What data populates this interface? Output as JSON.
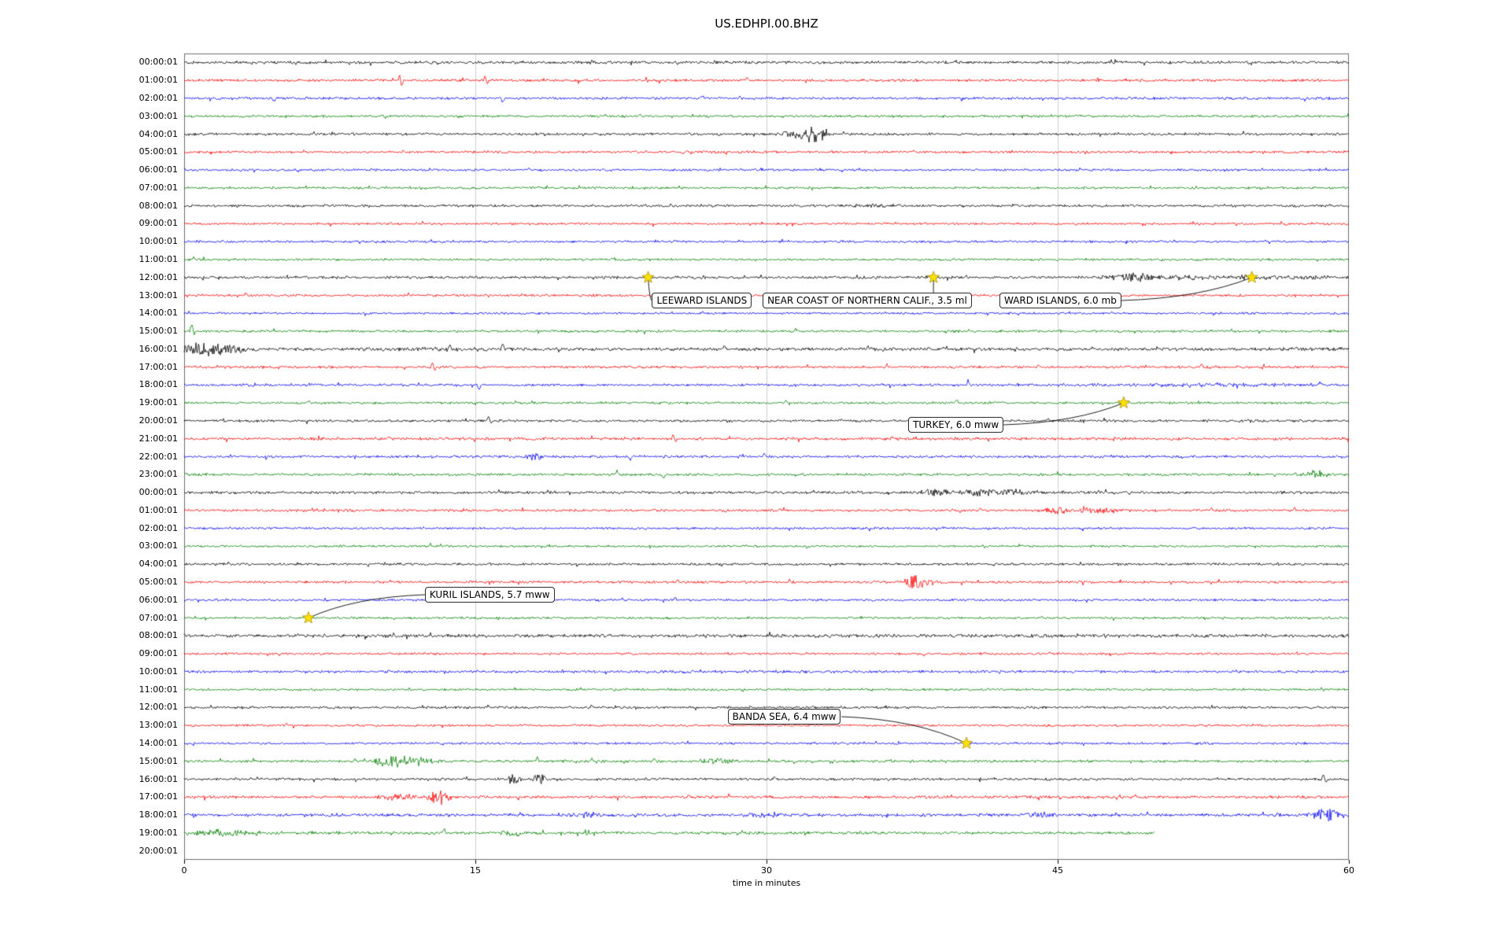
{
  "chart_data": {
    "type": "line",
    "subtype": "seismogram-dayplot",
    "title": "US.EDHPI.00.BHZ",
    "xlabel": "time in minutes",
    "xlim": [
      0,
      60
    ],
    "x_ticks": [
      0,
      15,
      30,
      45,
      60
    ],
    "grid": "vertical-gridlines-at-ticks",
    "trace_color_cycle": [
      "#000000",
      "#ff0000",
      "#0000ff",
      "#008000"
    ],
    "colors": {
      "grid": "#cfcfcf",
      "frame": "#6e6e6e",
      "star_fill": "#ffe000",
      "star_edge": "#9c8400",
      "connector": "#000000"
    },
    "rows": [
      {
        "label": "00:00:01",
        "color": "#000000",
        "noise_amp": 2.1,
        "bursts": [],
        "spikes": [],
        "end_minute": 60
      },
      {
        "label": "01:00:01",
        "color": "#ff0000",
        "noise_amp": 2.0,
        "bursts": [],
        "spikes": [
          [
            11.1,
            7
          ],
          [
            11.2,
            -7
          ],
          [
            15.5,
            6
          ],
          [
            15.6,
            -4
          ],
          [
            29.0,
            3
          ]
        ],
        "end_minute": 60
      },
      {
        "label": "02:00:01",
        "color": "#0000ff",
        "noise_amp": 1.9,
        "bursts": [],
        "spikes": [
          [
            4.6,
            -5
          ],
          [
            16.4,
            -6
          ],
          [
            26.7,
            4
          ]
        ],
        "end_minute": 60
      },
      {
        "label": "03:00:01",
        "color": "#008000",
        "noise_amp": 1.8,
        "bursts": [],
        "spikes": [
          [
            23.5,
            3
          ]
        ],
        "end_minute": 60
      },
      {
        "label": "04:00:01",
        "color": "#000000",
        "noise_amp": 1.9,
        "bursts": [
          [
            31.2,
            0.5,
            4
          ],
          [
            32.4,
            0.8,
            11
          ]
        ],
        "spikes": [],
        "end_minute": 60
      },
      {
        "label": "05:00:01",
        "color": "#ff0000",
        "noise_amp": 1.8,
        "bursts": [],
        "spikes": [],
        "end_minute": 60
      },
      {
        "label": "06:00:01",
        "color": "#0000ff",
        "noise_amp": 1.7,
        "bursts": [],
        "spikes": [],
        "end_minute": 60
      },
      {
        "label": "07:00:01",
        "color": "#008000",
        "noise_amp": 1.7,
        "bursts": [],
        "spikes": [],
        "end_minute": 60
      },
      {
        "label": "08:00:01",
        "color": "#000000",
        "noise_amp": 1.9,
        "bursts": [
          [
            35.7,
            1.2,
            2.5
          ]
        ],
        "spikes": [],
        "end_minute": 60
      },
      {
        "label": "09:00:01",
        "color": "#ff0000",
        "noise_amp": 1.7,
        "bursts": [],
        "spikes": [],
        "end_minute": 60
      },
      {
        "label": "10:00:01",
        "color": "#0000ff",
        "noise_amp": 1.7,
        "bursts": [],
        "spikes": [],
        "end_minute": 60
      },
      {
        "label": "11:00:01",
        "color": "#008000",
        "noise_amp": 1.7,
        "bursts": [],
        "spikes": [
          [
            0.5,
            3
          ]
        ],
        "end_minute": 60
      },
      {
        "label": "12:00:01",
        "color": "#000000",
        "noise_amp": 2.0,
        "bursts": [
          [
            48.8,
            1.1,
            6
          ],
          [
            52.0,
            4.0,
            2.2
          ],
          [
            57.0,
            3.0,
            2.0
          ]
        ],
        "spikes": [
          [
            40.3,
            3
          ]
        ],
        "end_minute": 60
      },
      {
        "label": "13:00:01",
        "color": "#ff0000",
        "noise_amp": 1.8,
        "bursts": [],
        "spikes": [
          [
            3.2,
            3
          ]
        ],
        "end_minute": 60
      },
      {
        "label": "14:00:01",
        "color": "#0000ff",
        "noise_amp": 1.7,
        "bursts": [],
        "spikes": [],
        "end_minute": 60
      },
      {
        "label": "15:00:01",
        "color": "#008000",
        "noise_amp": 1.9,
        "bursts": [],
        "spikes": [
          [
            0.4,
            9
          ],
          [
            0.5,
            -4
          ],
          [
            31.5,
            3
          ]
        ],
        "end_minute": 60
      },
      {
        "label": "16:00:01",
        "color": "#000000",
        "noise_amp": 2.4,
        "bursts": [
          [
            0.8,
            0.9,
            9
          ],
          [
            2.2,
            1.2,
            6
          ],
          [
            13.0,
            4.0,
            1.5
          ]
        ],
        "spikes": [
          [
            13.7,
            6
          ],
          [
            16.4,
            7
          ],
          [
            27.8,
            3
          ],
          [
            35.2,
            4
          ],
          [
            46.8,
            4
          ]
        ],
        "end_minute": 60
      },
      {
        "label": "17:00:01",
        "color": "#ff0000",
        "noise_amp": 1.9,
        "bursts": [],
        "spikes": [
          [
            12.8,
            6
          ],
          [
            12.9,
            -5
          ],
          [
            36.2,
            5
          ],
          [
            44.0,
            3
          ],
          [
            52.4,
            4
          ]
        ],
        "end_minute": 60
      },
      {
        "label": "18:00:01",
        "color": "#0000ff",
        "noise_amp": 1.9,
        "bursts": [
          [
            52.0,
            6.0,
            1.8
          ]
        ],
        "spikes": [
          [
            15.2,
            -6
          ],
          [
            40.4,
            5
          ],
          [
            58.5,
            3
          ]
        ],
        "end_minute": 60
      },
      {
        "label": "19:00:01",
        "color": "#008000",
        "noise_amp": 1.8,
        "bursts": [],
        "spikes": [
          [
            6.4,
            3
          ],
          [
            31.0,
            3
          ],
          [
            39.8,
            4
          ]
        ],
        "end_minute": 60
      },
      {
        "label": "20:00:01",
        "color": "#000000",
        "noise_amp": 1.9,
        "bursts": [],
        "spikes": [
          [
            15.7,
            7
          ],
          [
            15.8,
            -4
          ],
          [
            44.5,
            3
          ]
        ],
        "end_minute": 60
      },
      {
        "label": "21:00:01",
        "color": "#ff0000",
        "noise_amp": 2.2,
        "bursts": [],
        "spikes": [
          [
            10.5,
            3
          ],
          [
            25.2,
            6
          ],
          [
            25.3,
            -5
          ],
          [
            36.5,
            4
          ]
        ],
        "end_minute": 60
      },
      {
        "label": "22:00:01",
        "color": "#0000ff",
        "noise_amp": 1.9,
        "bursts": [
          [
            18.0,
            0.5,
            5
          ]
        ],
        "spikes": [
          [
            23.0,
            -4
          ],
          [
            29.9,
            5
          ]
        ],
        "end_minute": 60
      },
      {
        "label": "23:00:01",
        "color": "#008000",
        "noise_amp": 1.9,
        "bursts": [
          [
            58.3,
            0.5,
            6
          ]
        ],
        "spikes": [
          [
            22.3,
            5
          ],
          [
            24.7,
            -5
          ]
        ],
        "end_minute": 60
      },
      {
        "label": "00:00:01",
        "color": "#000000",
        "noise_amp": 2.1,
        "bursts": [
          [
            38.7,
            0.8,
            5
          ],
          [
            41.3,
            1.6,
            4.5
          ],
          [
            43.0,
            0.8,
            3
          ]
        ],
        "spikes": [],
        "end_minute": 60
      },
      {
        "label": "01:00:01",
        "color": "#ff0000",
        "noise_amp": 1.9,
        "bursts": [
          [
            44.9,
            0.6,
            5
          ],
          [
            46.9,
            1.2,
            3.5
          ]
        ],
        "spikes": [
          [
            41.0,
            3
          ],
          [
            52.9,
            3
          ],
          [
            57.2,
            3
          ]
        ],
        "end_minute": 60
      },
      {
        "label": "02:00:01",
        "color": "#0000ff",
        "noise_amp": 1.7,
        "bursts": [],
        "spikes": [],
        "end_minute": 60
      },
      {
        "label": "03:00:01",
        "color": "#008000",
        "noise_amp": 1.7,
        "bursts": [],
        "spikes": [
          [
            12.7,
            3
          ]
        ],
        "end_minute": 60
      },
      {
        "label": "04:00:01",
        "color": "#000000",
        "noise_amp": 1.8,
        "bursts": [],
        "spikes": [],
        "end_minute": 60
      },
      {
        "label": "05:00:01",
        "color": "#ff0000",
        "noise_amp": 1.9,
        "bursts": [
          [
            37.8,
            0.7,
            10
          ]
        ],
        "spikes": [
          [
            25.4,
            4
          ],
          [
            31.2,
            3
          ]
        ],
        "end_minute": 60
      },
      {
        "label": "06:00:01",
        "color": "#0000ff",
        "noise_amp": 1.7,
        "bursts": [],
        "spikes": [
          [
            25.3,
            3
          ]
        ],
        "end_minute": 60
      },
      {
        "label": "07:00:01",
        "color": "#008000",
        "noise_amp": 1.7,
        "bursts": [],
        "spikes": [],
        "end_minute": 60
      },
      {
        "label": "08:00:01",
        "color": "#000000",
        "noise_amp": 2.5,
        "bursts": [],
        "spikes": [],
        "end_minute": 60
      },
      {
        "label": "09:00:01",
        "color": "#ff0000",
        "noise_amp": 1.7,
        "bursts": [],
        "spikes": [],
        "end_minute": 60
      },
      {
        "label": "10:00:01",
        "color": "#0000ff",
        "noise_amp": 1.9,
        "bursts": [
          [
            30.0,
            12.0,
            0.8
          ]
        ],
        "spikes": [],
        "end_minute": 60
      },
      {
        "label": "11:00:01",
        "color": "#008000",
        "noise_amp": 1.7,
        "bursts": [],
        "spikes": [],
        "end_minute": 60
      },
      {
        "label": "12:00:01",
        "color": "#000000",
        "noise_amp": 1.8,
        "bursts": [],
        "spikes": [
          [
            21.0,
            3
          ],
          [
            58.4,
            3
          ]
        ],
        "end_minute": 60
      },
      {
        "label": "13:00:01",
        "color": "#ff0000",
        "noise_amp": 1.7,
        "bursts": [],
        "spikes": [],
        "end_minute": 60
      },
      {
        "label": "14:00:01",
        "color": "#0000ff",
        "noise_amp": 1.7,
        "bursts": [],
        "spikes": [],
        "end_minute": 60
      },
      {
        "label": "15:00:01",
        "color": "#008000",
        "noise_amp": 1.9,
        "bursts": [
          [
            10.7,
            1.0,
            8
          ],
          [
            12.2,
            0.8,
            5
          ],
          [
            27.4,
            0.9,
            3.5
          ]
        ],
        "spikes": [
          [
            18.2,
            5
          ],
          [
            21.0,
            3
          ],
          [
            24.2,
            4
          ]
        ],
        "end_minute": 60
      },
      {
        "label": "16:00:01",
        "color": "#000000",
        "noise_amp": 1.9,
        "bursts": [
          [
            17.0,
            0.4,
            6
          ],
          [
            18.3,
            0.4,
            7
          ]
        ],
        "spikes": [
          [
            24.5,
            3
          ],
          [
            30.4,
            4
          ],
          [
            58.7,
            6
          ],
          [
            58.8,
            -5
          ]
        ],
        "end_minute": 60
      },
      {
        "label": "17:00:01",
        "color": "#ff0000",
        "noise_amp": 2.1,
        "bursts": [
          [
            11.0,
            0.9,
            5
          ],
          [
            13.1,
            0.5,
            11
          ]
        ],
        "spikes": [
          [
            26.0,
            3
          ],
          [
            49.0,
            3
          ]
        ],
        "end_minute": 60
      },
      {
        "label": "18:00:01",
        "color": "#0000ff",
        "noise_amp": 2.3,
        "bursts": [
          [
            21.0,
            0.8,
            3.5
          ],
          [
            30.0,
            1.0,
            2.5
          ],
          [
            44.0,
            0.8,
            3.5
          ],
          [
            58.9,
            1.0,
            7
          ]
        ],
        "spikes": [],
        "end_minute": 60
      },
      {
        "label": "19:00:01",
        "color": "#008000",
        "noise_amp": 2.1,
        "bursts": [
          [
            2.2,
            2.2,
            4
          ],
          [
            16.8,
            0.5,
            4
          ]
        ],
        "spikes": [
          [
            13.4,
            5
          ],
          [
            17.2,
            -5
          ]
        ],
        "end_minute": 50
      },
      {
        "label": "20:00:01",
        "color": "#000000",
        "noise_amp": 0,
        "bursts": [],
        "spikes": [],
        "end_minute": 0
      }
    ],
    "events": [
      {
        "label": "LEEWARD ISLANDS",
        "star_row": 12,
        "star_minute": 23.9,
        "box_minute": 24.1,
        "box_row_offset": 1.3
      },
      {
        "label": "NEAR COAST OF NORTHERN CALIF., 3.5 ml",
        "star_row": 12,
        "star_minute": 38.6,
        "box_minute": 29.8,
        "box_row_offset": 1.3
      },
      {
        "label": "WARD ISLANDS, 6.0 mb",
        "star_row": 12,
        "star_minute": 55.0,
        "box_minute": 42.0,
        "box_row_offset": 1.3
      },
      {
        "label": "TURKEY, 6.0 mww",
        "star_row": 19,
        "star_minute": 48.4,
        "box_minute": 37.3,
        "box_row_offset": 1.2
      },
      {
        "label": "KURIL ISLANDS, 5.7 mww",
        "star_row": 31,
        "star_minute": 6.4,
        "box_minute": 12.4,
        "box_row_offset": -1.3
      },
      {
        "label": "BANDA SEA, 6.4 mww",
        "star_row": 38,
        "star_minute": 40.3,
        "box_minute": 28.0,
        "box_row_offset": -1.5
      }
    ]
  }
}
